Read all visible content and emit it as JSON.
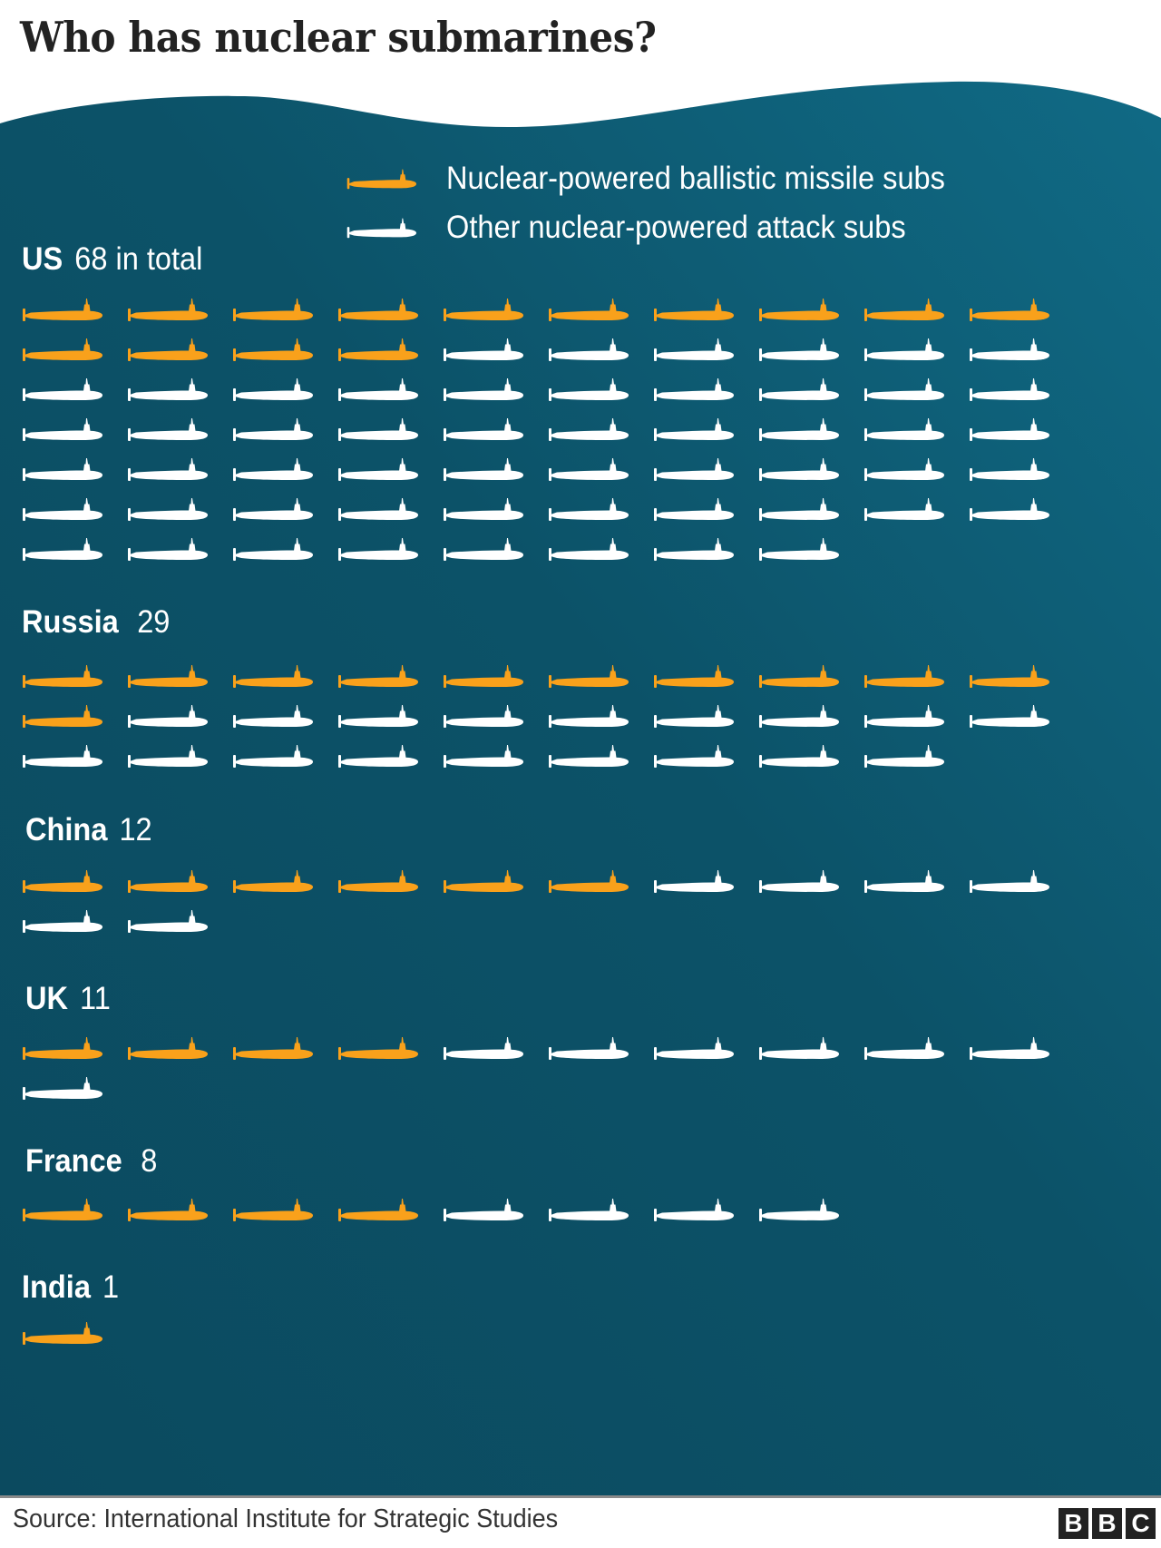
{
  "title": "Who has nuclear submarines?",
  "colors": {
    "ballistic": "#f9a11b",
    "attack": "#ffffff",
    "sea_dark": "#0b4b60",
    "sea_light": "#106a85",
    "title": "#222222"
  },
  "legend": [
    {
      "key": "ballistic",
      "label": "Nuclear-powered ballistic missile subs",
      "icon": "orange-submarine-icon"
    },
    {
      "key": "attack",
      "label": "Other nuclear-powered attack subs",
      "icon": "white-submarine-icon"
    }
  ],
  "countries": [
    {
      "name": "US",
      "count_label": "68 in total",
      "total": 68,
      "ballistic": 14,
      "attack": 54
    },
    {
      "name": "Russia",
      "count_label": "29",
      "total": 29,
      "ballistic": 11,
      "attack": 18
    },
    {
      "name": "China",
      "count_label": "12",
      "total": 12,
      "ballistic": 6,
      "attack": 6
    },
    {
      "name": "UK",
      "count_label": "11",
      "total": 11,
      "ballistic": 4,
      "attack": 7
    },
    {
      "name": "France",
      "count_label": "8",
      "total": 8,
      "ballistic": 4,
      "attack": 4
    },
    {
      "name": "India",
      "count_label": "1",
      "total": 1,
      "ballistic": 1,
      "attack": 0
    }
  ],
  "footer": {
    "source": "Source: International Institute for Strategic Studies",
    "logo_letters": [
      "B",
      "B",
      "C"
    ]
  },
  "chart_data": {
    "type": "bar",
    "subtype": "pictogram (isotype), 1 icon = 1 submarine, 10 icons per row",
    "title": "Who has nuclear submarines?",
    "categories": [
      "US",
      "Russia",
      "China",
      "UK",
      "France",
      "India"
    ],
    "series": [
      {
        "name": "Nuclear-powered ballistic missile subs",
        "color": "#f9a11b",
        "values": [
          14,
          11,
          6,
          4,
          4,
          1
        ]
      },
      {
        "name": "Other nuclear-powered attack subs",
        "color": "#ffffff",
        "values": [
          54,
          18,
          6,
          7,
          4,
          0
        ]
      }
    ],
    "totals": [
      68,
      29,
      12,
      11,
      8,
      1
    ],
    "stacked": true,
    "legend_position": "top-right",
    "grid": false,
    "xlabel": "",
    "ylabel": "",
    "source": "Source: International Institute for Strategic Studies"
  }
}
